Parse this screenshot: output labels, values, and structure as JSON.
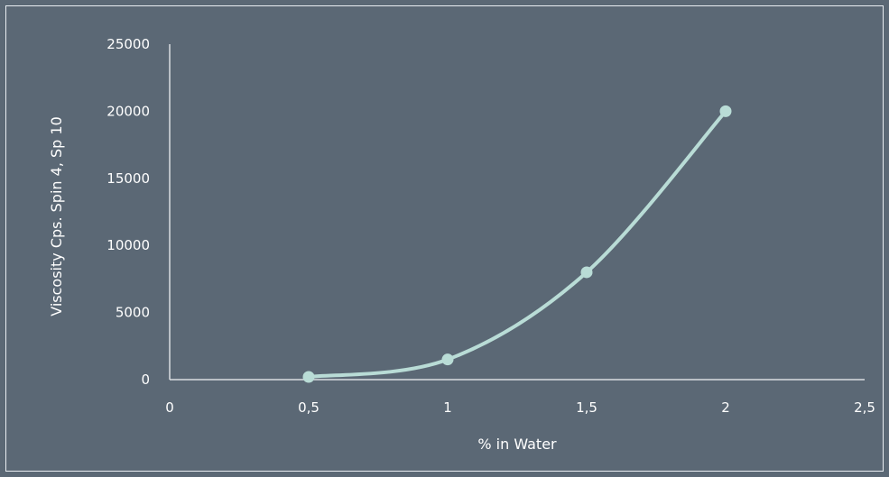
{
  "chart_data": {
    "type": "scatter",
    "title": "",
    "xlabel": "% in Water",
    "ylabel": "Viscosity Cps. Spin 4, Sp 10",
    "xlim": [
      0,
      2.5
    ],
    "ylim": [
      0,
      25000
    ],
    "x_ticks": [
      "0",
      "0,5",
      "1",
      "1,5",
      "2",
      "2,5"
    ],
    "y_ticks": [
      "0",
      "5000",
      "10000",
      "15000",
      "20000",
      "25000"
    ],
    "series": [
      {
        "points": [
          {
            "x": 0.5,
            "y": 200
          },
          {
            "x": 1.0,
            "y": 1500
          },
          {
            "x": 1.5,
            "y": 8000
          },
          {
            "x": 2.0,
            "y": 20000
          }
        ],
        "line": "smooth",
        "markers": true
      }
    ],
    "grid": false,
    "colors": {
      "background": "#5b6875",
      "series": "#b9dcd6",
      "axis": "#d9dee2",
      "text": "#ffffff"
    }
  }
}
